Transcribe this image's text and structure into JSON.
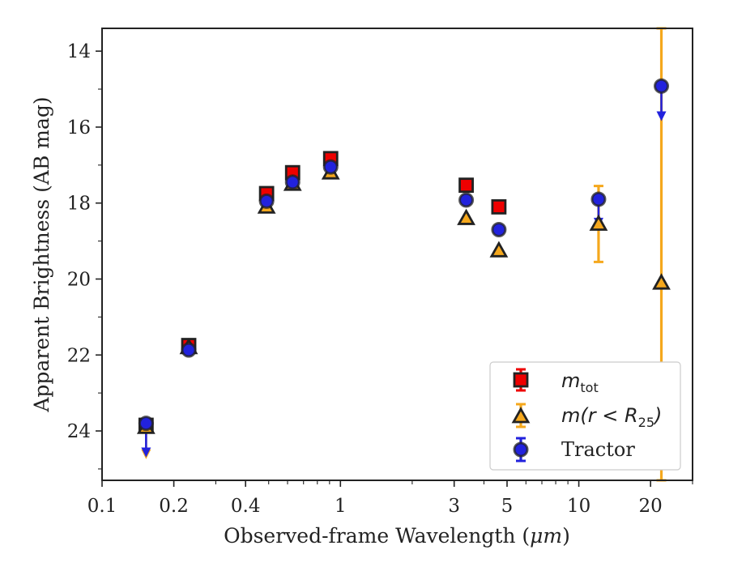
{
  "chart_data": {
    "type": "scatter",
    "xlabel_prefix": "Observed-frame Wavelength (",
    "xlabel_unit": "μm",
    "xlabel_suffix": ")",
    "ylabel": "Apparent Brightness (AB mag)",
    "x_scale": "log",
    "y_inverted": true,
    "xlim": [
      0.1,
      30
    ],
    "ylim": [
      13.4,
      25.3
    ],
    "x_ticks": [
      0.1,
      0.2,
      0.4,
      1,
      3,
      5,
      10,
      20
    ],
    "x_tick_labels": [
      "0.1",
      "0.2",
      "0.4",
      "1",
      "3",
      "5",
      "10",
      "20"
    ],
    "y_ticks": [
      14,
      16,
      18,
      20,
      22,
      24
    ],
    "y_tick_labels": [
      "14",
      "16",
      "18",
      "20",
      "22",
      "24"
    ],
    "grid": false,
    "legend_position": "lower-right",
    "colors": {
      "m_tot": "#ee0000",
      "m_r25": "#f5a81d",
      "tractor": "#2222dd",
      "edge": "#222222"
    },
    "series": [
      {
        "key": "m_tot",
        "marker": "square",
        "legend": {
          "math": "m",
          "sub": "tot",
          "rest": ""
        },
        "points": [
          {
            "x": 0.153,
            "y": 23.85
          },
          {
            "x": 0.231,
            "y": 21.75
          },
          {
            "x": 0.49,
            "y": 17.75
          },
          {
            "x": 0.63,
            "y": 17.2
          },
          {
            "x": 0.91,
            "y": 16.83
          },
          {
            "x": 3.37,
            "y": 17.53
          },
          {
            "x": 4.62,
            "y": 18.1
          }
        ]
      },
      {
        "key": "m_r25",
        "marker": "triangle",
        "legend": {
          "math": "m",
          "sub": "25",
          "rest": "(r < R",
          "close": ")"
        },
        "points": [
          {
            "x": 0.153,
            "y": 23.9,
            "upper_limit": true,
            "arrow_to": 24.7
          },
          {
            "x": 0.231,
            "y": 21.8
          },
          {
            "x": 0.49,
            "y": 18.1
          },
          {
            "x": 0.63,
            "y": 17.5
          },
          {
            "x": 0.91,
            "y": 17.2
          },
          {
            "x": 3.37,
            "y": 18.4
          },
          {
            "x": 4.62,
            "y": 19.25
          },
          {
            "x": 12.1,
            "y": 18.55,
            "err_low": 17.55,
            "err_high": 19.55
          },
          {
            "x": 22.2,
            "y": 20.1,
            "err_low": 13.4,
            "err_high": 25.3
          }
        ]
      },
      {
        "key": "tractor",
        "marker": "circle",
        "legend": {
          "text": "Tractor"
        },
        "points": [
          {
            "x": 0.153,
            "y": 23.8,
            "upper_limit": true,
            "arrow_to": 24.65
          },
          {
            "x": 0.231,
            "y": 21.87
          },
          {
            "x": 0.49,
            "y": 17.95
          },
          {
            "x": 0.63,
            "y": 17.45
          },
          {
            "x": 0.91,
            "y": 17.05
          },
          {
            "x": 3.37,
            "y": 17.92
          },
          {
            "x": 4.62,
            "y": 18.7
          },
          {
            "x": 12.1,
            "y": 17.9,
            "upper_limit": true,
            "arrow_to": 18.6
          },
          {
            "x": 22.2,
            "y": 14.92,
            "upper_limit": true,
            "arrow_to": 15.8
          }
        ]
      }
    ]
  }
}
